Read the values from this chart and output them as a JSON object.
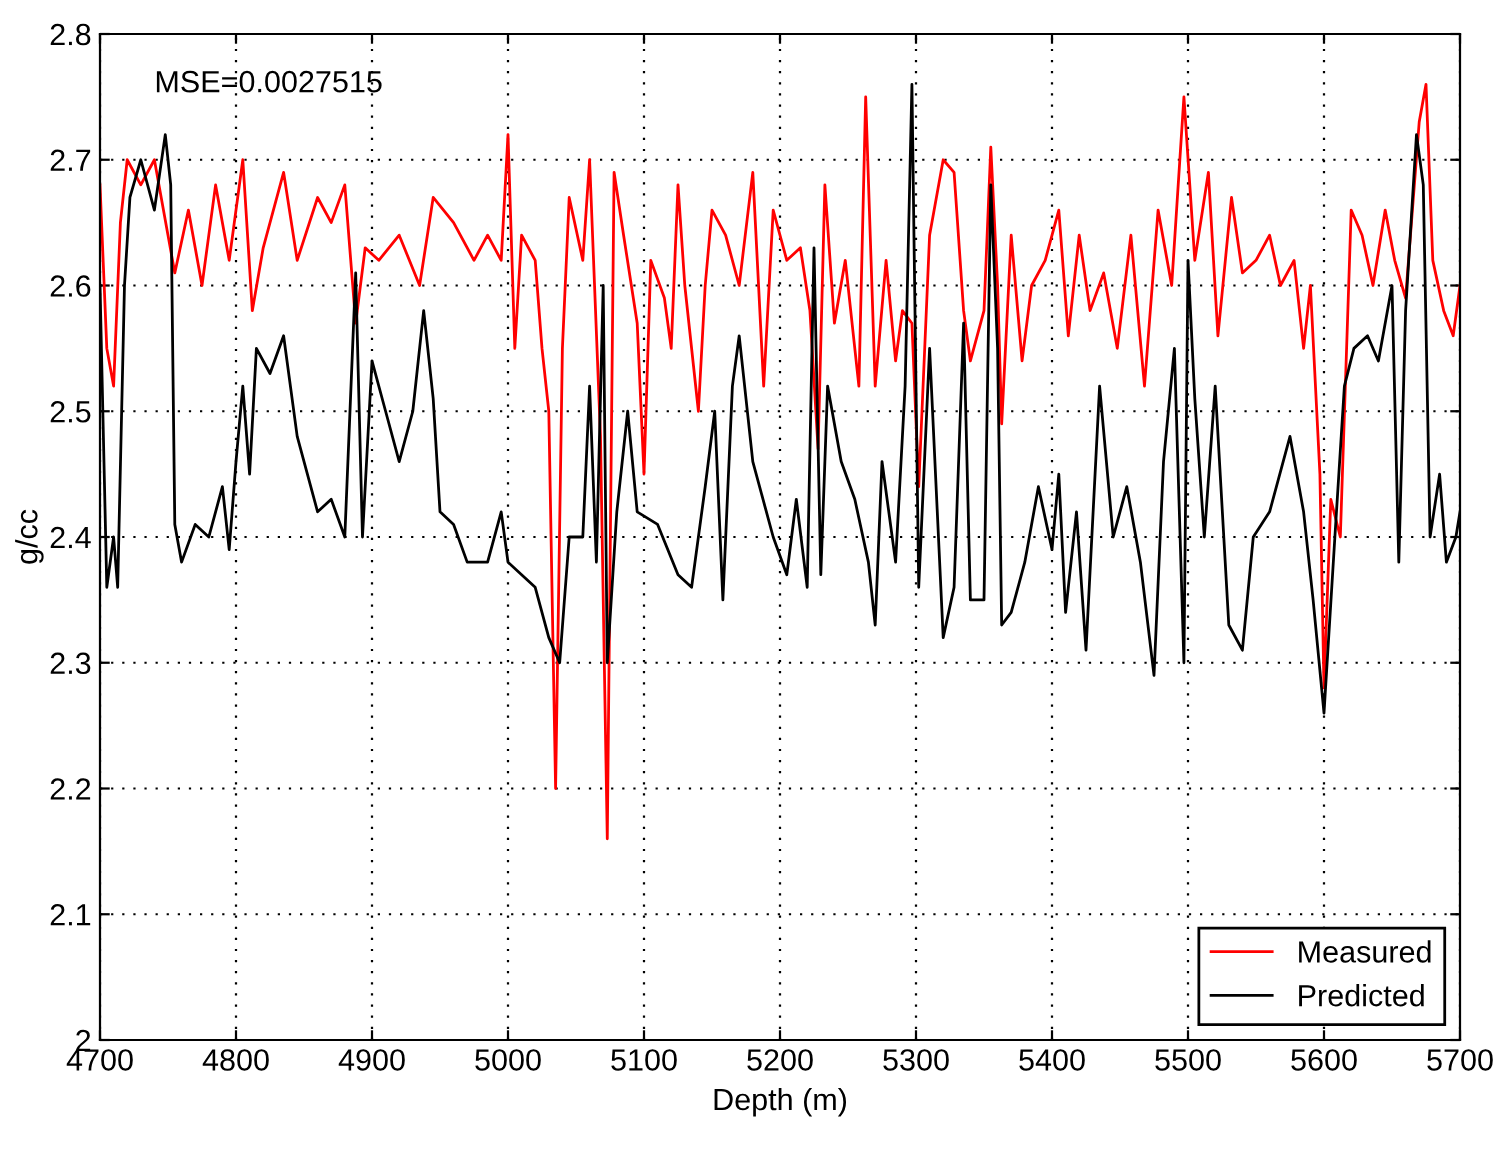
{
  "chart_data": {
    "type": "line",
    "xlabel": "Depth (m)",
    "ylabel": "g/cc",
    "xlim": [
      4700,
      5700
    ],
    "xticks": [
      4700,
      4800,
      4900,
      5000,
      5100,
      5200,
      5300,
      5400,
      5500,
      5600,
      5700
    ],
    "ylim": [
      2,
      2.8
    ],
    "yticks": [
      2,
      2.1,
      2.2,
      2.3,
      2.4,
      2.5,
      2.6,
      2.7,
      2.8
    ],
    "grid": true,
    "legend": "bottom right",
    "line_style": "solid",
    "annotations": [
      "MSE=0.0027515"
    ],
    "series": [
      {
        "name": "Measured",
        "color": "#ff0000",
        "x": [
          4700,
          4705,
          4710,
          4715,
          4720,
          4730,
          4740,
          4750,
          4755,
          4765,
          4775,
          4785,
          4795,
          4805,
          4812,
          4820,
          4835,
          4845,
          4860,
          4870,
          4880,
          4888,
          4895,
          4905,
          4920,
          4935,
          4945,
          4960,
          4975,
          4985,
          4995,
          5000,
          5005,
          5010,
          5020,
          5025,
          5030,
          5035,
          5040,
          5045,
          5055,
          5060,
          5068,
          5073,
          5078,
          5085,
          5095,
          5100,
          5105,
          5115,
          5120,
          5125,
          5130,
          5140,
          5145,
          5150,
          5160,
          5170,
          5180,
          5188,
          5195,
          5205,
          5215,
          5222,
          5228,
          5233,
          5240,
          5248,
          5258,
          5263,
          5270,
          5278,
          5285,
          5290,
          5297,
          5302,
          5310,
          5320,
          5328,
          5335,
          5340,
          5350,
          5355,
          5360,
          5363,
          5370,
          5378,
          5385,
          5395,
          5405,
          5412,
          5420,
          5428,
          5438,
          5448,
          5458,
          5468,
          5478,
          5488,
          5497,
          5505,
          5515,
          5522,
          5532,
          5540,
          5550,
          5560,
          5568,
          5578,
          5585,
          5590,
          5597,
          5600,
          5605,
          5612,
          5620,
          5628,
          5636,
          5645,
          5652,
          5660,
          5670,
          5675,
          5680,
          5688,
          5695,
          5700
        ],
        "values": [
          2.68,
          2.55,
          2.52,
          2.65,
          2.7,
          2.68,
          2.7,
          2.64,
          2.61,
          2.66,
          2.6,
          2.68,
          2.62,
          2.7,
          2.58,
          2.63,
          2.69,
          2.62,
          2.67,
          2.65,
          2.68,
          2.57,
          2.63,
          2.62,
          2.64,
          2.6,
          2.67,
          2.65,
          2.62,
          2.64,
          2.62,
          2.72,
          2.55,
          2.64,
          2.62,
          2.55,
          2.5,
          2.2,
          2.55,
          2.67,
          2.62,
          2.7,
          2.48,
          2.16,
          2.69,
          2.64,
          2.57,
          2.45,
          2.62,
          2.59,
          2.55,
          2.68,
          2.6,
          2.5,
          2.6,
          2.66,
          2.64,
          2.6,
          2.69,
          2.52,
          2.66,
          2.62,
          2.63,
          2.58,
          2.47,
          2.68,
          2.57,
          2.62,
          2.52,
          2.75,
          2.52,
          2.62,
          2.54,
          2.58,
          2.57,
          2.44,
          2.64,
          2.7,
          2.69,
          2.58,
          2.54,
          2.58,
          2.71,
          2.6,
          2.49,
          2.64,
          2.54,
          2.6,
          2.62,
          2.66,
          2.56,
          2.64,
          2.58,
          2.61,
          2.55,
          2.64,
          2.52,
          2.66,
          2.6,
          2.75,
          2.62,
          2.69,
          2.56,
          2.67,
          2.61,
          2.62,
          2.64,
          2.6,
          2.62,
          2.55,
          2.6,
          2.45,
          2.28,
          2.43,
          2.4,
          2.66,
          2.64,
          2.6,
          2.66,
          2.62,
          2.59,
          2.73,
          2.76,
          2.62,
          2.58,
          2.56,
          2.6
        ]
      },
      {
        "name": "Predicted",
        "color": "#000000",
        "x": [
          4700,
          4705,
          4710,
          4713,
          4718,
          4722,
          4730,
          4740,
          4748,
          4752,
          4755,
          4760,
          4770,
          4780,
          4790,
          4795,
          4800,
          4805,
          4810,
          4815,
          4825,
          4835,
          4845,
          4860,
          4870,
          4880,
          4888,
          4893,
          4900,
          4910,
          4920,
          4930,
          4938,
          4945,
          4950,
          4960,
          4970,
          4985,
          4995,
          5000,
          5010,
          5020,
          5030,
          5038,
          5045,
          5055,
          5060,
          5065,
          5070,
          5073,
          5080,
          5088,
          5095,
          5110,
          5125,
          5135,
          5145,
          5152,
          5158,
          5165,
          5170,
          5180,
          5195,
          5205,
          5212,
          5220,
          5225,
          5230,
          5235,
          5245,
          5255,
          5265,
          5270,
          5275,
          5285,
          5292,
          5297,
          5302,
          5310,
          5320,
          5328,
          5335,
          5340,
          5350,
          5355,
          5360,
          5363,
          5370,
          5380,
          5390,
          5400,
          5405,
          5410,
          5418,
          5425,
          5435,
          5445,
          5455,
          5465,
          5475,
          5482,
          5490,
          5497,
          5500,
          5505,
          5512,
          5520,
          5530,
          5540,
          5548,
          5560,
          5575,
          5585,
          5592,
          5600,
          5608,
          5615,
          5622,
          5632,
          5640,
          5650,
          5655,
          5660,
          5668,
          5673,
          5678,
          5685,
          5690,
          5697,
          5700
        ],
        "values": [
          2.6,
          2.36,
          2.4,
          2.36,
          2.6,
          2.67,
          2.7,
          2.66,
          2.72,
          2.68,
          2.41,
          2.38,
          2.41,
          2.4,
          2.44,
          2.39,
          2.46,
          2.52,
          2.45,
          2.55,
          2.53,
          2.56,
          2.48,
          2.42,
          2.43,
          2.4,
          2.61,
          2.4,
          2.54,
          2.5,
          2.46,
          2.5,
          2.58,
          2.51,
          2.42,
          2.41,
          2.38,
          2.38,
          2.42,
          2.38,
          2.37,
          2.36,
          2.32,
          2.3,
          2.4,
          2.4,
          2.52,
          2.38,
          2.6,
          2.3,
          2.42,
          2.5,
          2.42,
          2.41,
          2.37,
          2.36,
          2.44,
          2.5,
          2.35,
          2.52,
          2.56,
          2.46,
          2.4,
          2.37,
          2.43,
          2.36,
          2.63,
          2.37,
          2.52,
          2.46,
          2.43,
          2.38,
          2.33,
          2.46,
          2.38,
          2.52,
          2.76,
          2.36,
          2.55,
          2.32,
          2.36,
          2.57,
          2.35,
          2.35,
          2.68,
          2.55,
          2.33,
          2.34,
          2.38,
          2.44,
          2.39,
          2.45,
          2.34,
          2.42,
          2.31,
          2.52,
          2.4,
          2.44,
          2.38,
          2.29,
          2.46,
          2.55,
          2.3,
          2.62,
          2.51,
          2.4,
          2.52,
          2.33,
          2.31,
          2.4,
          2.42,
          2.48,
          2.42,
          2.35,
          2.26,
          2.4,
          2.52,
          2.55,
          2.56,
          2.54,
          2.6,
          2.38,
          2.58,
          2.72,
          2.68,
          2.4,
          2.45,
          2.38,
          2.4,
          2.42
        ]
      }
    ]
  }
}
